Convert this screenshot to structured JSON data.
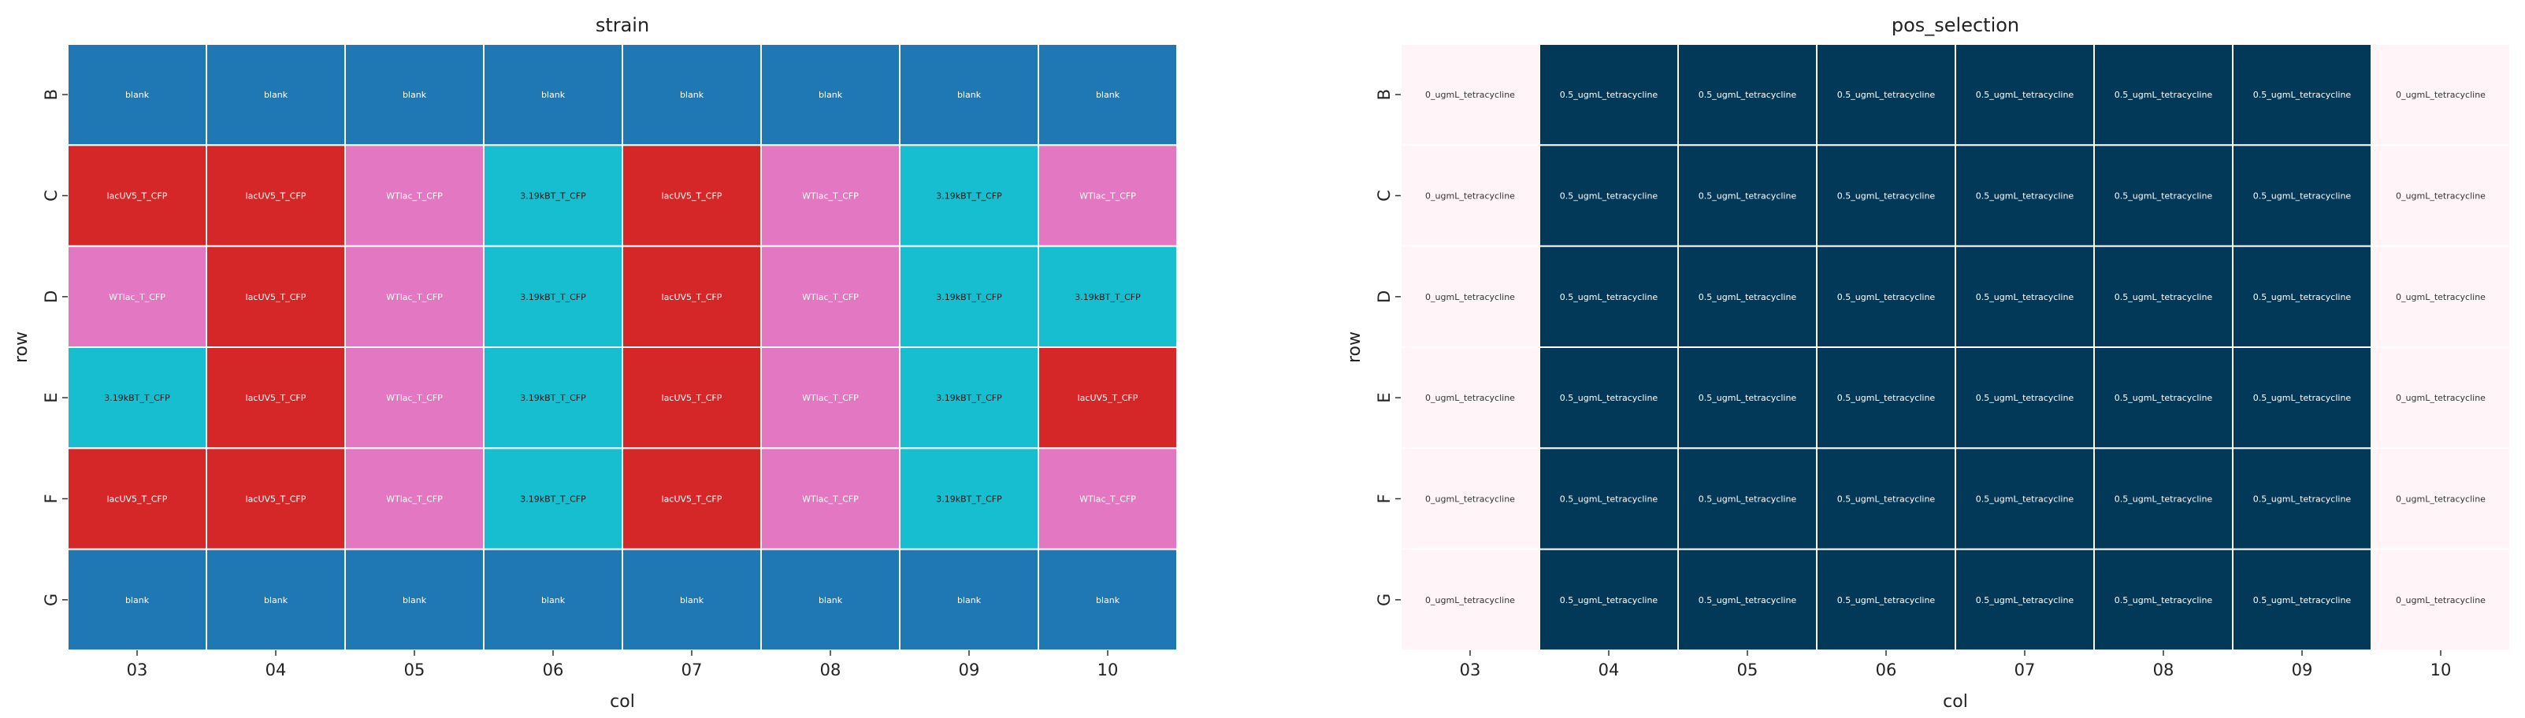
{
  "chart_data": [
    {
      "type": "heatmap",
      "title": "strain",
      "xlabel": "col",
      "ylabel": "row",
      "x_categories": [
        "03",
        "04",
        "05",
        "06",
        "07",
        "08",
        "09",
        "10"
      ],
      "y_categories": [
        "B",
        "C",
        "D",
        "E",
        "F",
        "G"
      ],
      "cells": [
        [
          "blank",
          "blank",
          "blank",
          "blank",
          "blank",
          "blank",
          "blank",
          "blank"
        ],
        [
          "lacUV5_T_CFP",
          "lacUV5_T_CFP",
          "WTlac_T_CFP",
          "3.19kBT_T_CFP",
          "lacUV5_T_CFP",
          "WTlac_T_CFP",
          "3.19kBT_T_CFP",
          "WTlac_T_CFP"
        ],
        [
          "WTlac_T_CFP",
          "lacUV5_T_CFP",
          "WTlac_T_CFP",
          "3.19kBT_T_CFP",
          "lacUV5_T_CFP",
          "WTlac_T_CFP",
          "3.19kBT_T_CFP",
          "3.19kBT_T_CFP"
        ],
        [
          "3.19kBT_T_CFP",
          "lacUV5_T_CFP",
          "WTlac_T_CFP",
          "3.19kBT_T_CFP",
          "lacUV5_T_CFP",
          "WTlac_T_CFP",
          "3.19kBT_T_CFP",
          "lacUV5_T_CFP"
        ],
        [
          "lacUV5_T_CFP",
          "lacUV5_T_CFP",
          "WTlac_T_CFP",
          "3.19kBT_T_CFP",
          "lacUV5_T_CFP",
          "WTlac_T_CFP",
          "3.19kBT_T_CFP",
          "WTlac_T_CFP"
        ],
        [
          "blank",
          "blank",
          "blank",
          "blank",
          "blank",
          "blank",
          "blank",
          "blank"
        ]
      ],
      "colors": {
        "blank": "#1f77b4",
        "lacUV5_T_CFP": "#d62728",
        "WTlac_T_CFP": "#e377c2",
        "3.19kBT_T_CFP": "#17becf"
      },
      "text_colors": {
        "blank": "#ffffff",
        "lacUV5_T_CFP": "#ffffff",
        "WTlac_T_CFP": "#ffffff",
        "3.19kBT_T_CFP": "#1a1a1a"
      },
      "grid": true
    },
    {
      "type": "heatmap",
      "title": "pos_selection",
      "xlabel": "col",
      "ylabel": "row",
      "x_categories": [
        "03",
        "04",
        "05",
        "06",
        "07",
        "08",
        "09",
        "10"
      ],
      "y_categories": [
        "B",
        "C",
        "D",
        "E",
        "F",
        "G"
      ],
      "cells": [
        [
          "0_ugmL_tetracycline",
          "0.5_ugmL_tetracycline",
          "0.5_ugmL_tetracycline",
          "0.5_ugmL_tetracycline",
          "0.5_ugmL_tetracycline",
          "0.5_ugmL_tetracycline",
          "0.5_ugmL_tetracycline",
          "0_ugmL_tetracycline"
        ],
        [
          "0_ugmL_tetracycline",
          "0.5_ugmL_tetracycline",
          "0.5_ugmL_tetracycline",
          "0.5_ugmL_tetracycline",
          "0.5_ugmL_tetracycline",
          "0.5_ugmL_tetracycline",
          "0.5_ugmL_tetracycline",
          "0_ugmL_tetracycline"
        ],
        [
          "0_ugmL_tetracycline",
          "0.5_ugmL_tetracycline",
          "0.5_ugmL_tetracycline",
          "0.5_ugmL_tetracycline",
          "0.5_ugmL_tetracycline",
          "0.5_ugmL_tetracycline",
          "0.5_ugmL_tetracycline",
          "0_ugmL_tetracycline"
        ],
        [
          "0_ugmL_tetracycline",
          "0.5_ugmL_tetracycline",
          "0.5_ugmL_tetracycline",
          "0.5_ugmL_tetracycline",
          "0.5_ugmL_tetracycline",
          "0.5_ugmL_tetracycline",
          "0.5_ugmL_tetracycline",
          "0_ugmL_tetracycline"
        ],
        [
          "0_ugmL_tetracycline",
          "0.5_ugmL_tetracycline",
          "0.5_ugmL_tetracycline",
          "0.5_ugmL_tetracycline",
          "0.5_ugmL_tetracycline",
          "0.5_ugmL_tetracycline",
          "0.5_ugmL_tetracycline",
          "0_ugmL_tetracycline"
        ],
        [
          "0_ugmL_tetracycline",
          "0.5_ugmL_tetracycline",
          "0.5_ugmL_tetracycline",
          "0.5_ugmL_tetracycline",
          "0.5_ugmL_tetracycline",
          "0.5_ugmL_tetracycline",
          "0.5_ugmL_tetracycline",
          "0_ugmL_tetracycline"
        ]
      ],
      "colors": {
        "0_ugmL_tetracycline": "#fff5f8",
        "0.5_ugmL_tetracycline": "#023858"
      },
      "text_colors": {
        "0_ugmL_tetracycline": "#333333",
        "0.5_ugmL_tetracycline": "#ffffff"
      },
      "grid": true
    }
  ]
}
